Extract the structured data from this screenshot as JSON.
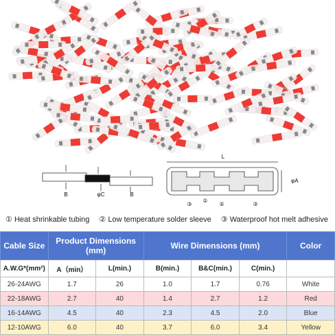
{
  "diagram": {
    "left_labels": [
      "B",
      "φC",
      "B"
    ],
    "length_label": "L",
    "diameter_label": "φA",
    "part_markers": [
      "③",
      "①",
      "②",
      "③"
    ]
  },
  "legend": [
    {
      "number": "①",
      "text": "Heat shrinkable tubing"
    },
    {
      "number": "②",
      "text": "Low temperature solder sleeve"
    },
    {
      "number": "③",
      "text": "Waterproof hot melt adhesive"
    }
  ],
  "table": {
    "header": [
      "Cable Size",
      "Product Dimensions (mm)",
      "Wire Dimensions (mm)",
      "Color"
    ],
    "subheader": [
      "A.W.G*(mm²)",
      "A（min）",
      "L(min.)",
      "B(min.)",
      "B&C(min.)",
      "C(min.)"
    ],
    "rows": [
      [
        "26-24AWG",
        "1.7",
        "26",
        "1.0",
        "1.7",
        "0.76",
        "White"
      ],
      [
        "22-18AWG",
        "2.7",
        "40",
        "1.4",
        "2.7",
        "1.2",
        "Red"
      ],
      [
        "16-14AWG",
        "4.5",
        "40",
        "2.3",
        "4.5",
        "2.0",
        "Blue"
      ],
      [
        "12-10AWG",
        "6.0",
        "40",
        "3.7",
        "6.0",
        "3.4",
        "Yellow"
      ]
    ]
  }
}
